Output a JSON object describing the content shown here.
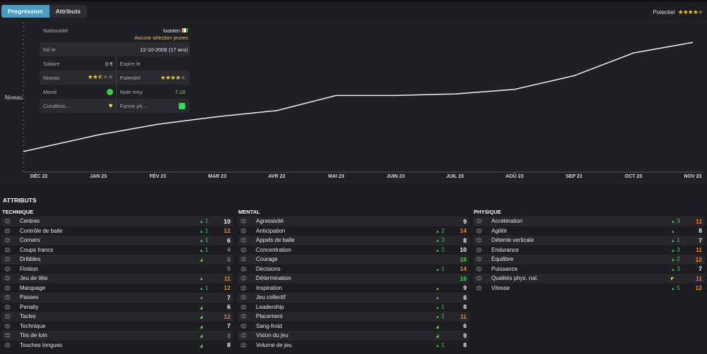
{
  "tabs": [
    {
      "label": "Progression",
      "active": true
    },
    {
      "label": "Attributs",
      "active": false
    }
  ],
  "potential": {
    "label": "Potentiel",
    "stars": 4,
    "max": 5
  },
  "card": {
    "nationality_label": "Nationalité",
    "nationality": "Ivoirien",
    "youth_caps": "Aucune sélection jeunes",
    "born_label": "Né le",
    "born": "12-10-2006 (17 ans)",
    "salary_label": "Salaire",
    "salary": "0 €",
    "expires_label": "Expire le",
    "level_label": "Niveau",
    "level_stars": 2.5,
    "potential_label": "Potentiel",
    "potential_stars": 4,
    "morale_label": "Moral",
    "avg_rating_label": "Note moy",
    "avg_rating": "7.18",
    "condition_label": "Condition...",
    "form_label": "Forme ph..."
  },
  "chart_data": {
    "type": "line",
    "ylabel": "Niveau",
    "xlabel": "",
    "categories": [
      "DÉC 22",
      "JAN 23",
      "FÉV 23",
      "MAR 23",
      "AVR 23",
      "MAI 23",
      "JUIN 23",
      "JUIL 23",
      "AOÛ 23",
      "SEP 23",
      "OCT 23",
      "NOV 23"
    ],
    "series": [
      {
        "name": "Niveau",
        "values": [
          14,
          25,
          32,
          37,
          41,
          51,
          51,
          52,
          55,
          64,
          79,
          86
        ]
      }
    ],
    "ylim": [
      0,
      100
    ],
    "grid": false
  },
  "attributes": {
    "title": "ATTRIBUTS",
    "groups": [
      {
        "title": "TECHNIQUE",
        "items": [
          {
            "name": "Centres",
            "trend": "up",
            "delta": "1",
            "value": "10",
            "color": "#ffffff"
          },
          {
            "name": "Contrôle de balle",
            "trend": "up",
            "delta": "1",
            "value": "12",
            "color": "#f08a1c"
          },
          {
            "name": "Corners",
            "trend": "up",
            "delta": "1",
            "value": "6",
            "color": "#ffffff"
          },
          {
            "name": "Coups francs",
            "trend": "up",
            "delta": "1",
            "value": "4",
            "color": "#888888"
          },
          {
            "name": "Dribbles",
            "trend": "side",
            "delta": "",
            "value": "5",
            "color": "#888888"
          },
          {
            "name": "Finition",
            "trend": "none",
            "delta": "",
            "value": "5",
            "color": "#888888"
          },
          {
            "name": "Jeu de tête",
            "trend": "warn",
            "delta": "",
            "value": "11",
            "color": "#f08a1c"
          },
          {
            "name": "Marquage",
            "trend": "up",
            "delta": "1",
            "value": "12",
            "color": "#f08a1c"
          },
          {
            "name": "Passes",
            "trend": "up",
            "delta": "",
            "value": "7",
            "color": "#ffffff"
          },
          {
            "name": "Penalty",
            "trend": "side",
            "delta": "",
            "value": "6",
            "color": "#ffffff"
          },
          {
            "name": "Tacles",
            "trend": "side",
            "delta": "",
            "value": "12",
            "color": "#f08a1c"
          },
          {
            "name": "Technique",
            "trend": "side",
            "delta": "",
            "value": "7",
            "color": "#ffffff"
          },
          {
            "name": "Tirs de loin",
            "trend": "side",
            "delta": "",
            "value": "3",
            "color": "#888888"
          },
          {
            "name": "Touches longues",
            "trend": "side",
            "delta": "",
            "value": "8",
            "color": "#ffffff"
          }
        ]
      },
      {
        "title": "MENTAL",
        "items": [
          {
            "name": "Agressivité",
            "trend": "none",
            "delta": "",
            "value": "9",
            "color": "#ffffff"
          },
          {
            "name": "Anticipation",
            "trend": "up",
            "delta": "2",
            "value": "14",
            "color": "#f08a1c"
          },
          {
            "name": "Appels de balle",
            "trend": "up",
            "delta": "3",
            "value": "8",
            "color": "#ffffff"
          },
          {
            "name": "Concentration",
            "trend": "up",
            "delta": "2",
            "value": "10",
            "color": "#ffffff"
          },
          {
            "name": "Courage",
            "trend": "none",
            "delta": "",
            "value": "18",
            "color": "#3ddc3d"
          },
          {
            "name": "Décisions",
            "trend": "up",
            "delta": "1",
            "value": "14",
            "color": "#f08a1c"
          },
          {
            "name": "Détermination",
            "trend": "none",
            "delta": "",
            "value": "16",
            "color": "#3ddc3d"
          },
          {
            "name": "Inspiration",
            "trend": "warn",
            "delta": "",
            "value": "9",
            "color": "#ffffff"
          },
          {
            "name": "Jeu collectif",
            "trend": "up",
            "delta": "",
            "value": "8",
            "color": "#ffffff"
          },
          {
            "name": "Leadership",
            "trend": "up",
            "delta": "1",
            "value": "8",
            "color": "#ffffff"
          },
          {
            "name": "Placement",
            "trend": "up",
            "delta": "2",
            "value": "11",
            "color": "#f08a1c"
          },
          {
            "name": "Sang-froid",
            "trend": "side",
            "delta": "",
            "value": "6",
            "color": "#ffffff"
          },
          {
            "name": "Vision du jeu",
            "trend": "side",
            "delta": "",
            "value": "9",
            "color": "#ffffff"
          },
          {
            "name": "Volume de jeu",
            "trend": "up",
            "delta": "1",
            "value": "8",
            "color": "#ffffff"
          }
        ]
      },
      {
        "title": "PHYSIQUE",
        "items": [
          {
            "name": "Accélération",
            "trend": "up",
            "delta": "3",
            "value": "11",
            "color": "#f08a1c"
          },
          {
            "name": "Agilité",
            "trend": "up",
            "delta": "",
            "value": "8",
            "color": "#ffffff"
          },
          {
            "name": "Détente verticale",
            "trend": "up",
            "delta": "1",
            "value": "7",
            "color": "#ffffff"
          },
          {
            "name": "Endurance",
            "trend": "up",
            "delta": "3",
            "value": "11",
            "color": "#f08a1c"
          },
          {
            "name": "Équilibre",
            "trend": "up",
            "delta": "2",
            "value": "12",
            "color": "#f08a1c"
          },
          {
            "name": "Puissance",
            "trend": "up",
            "delta": "3",
            "value": "7",
            "color": "#ffffff"
          },
          {
            "name": "Qualités phys. nat.",
            "trend": "down",
            "delta": "",
            "value": "11",
            "color": "#f08a1c"
          },
          {
            "name": "Vitesse",
            "trend": "up",
            "delta": "5",
            "value": "12",
            "color": "#f08a1c"
          }
        ]
      }
    ]
  }
}
